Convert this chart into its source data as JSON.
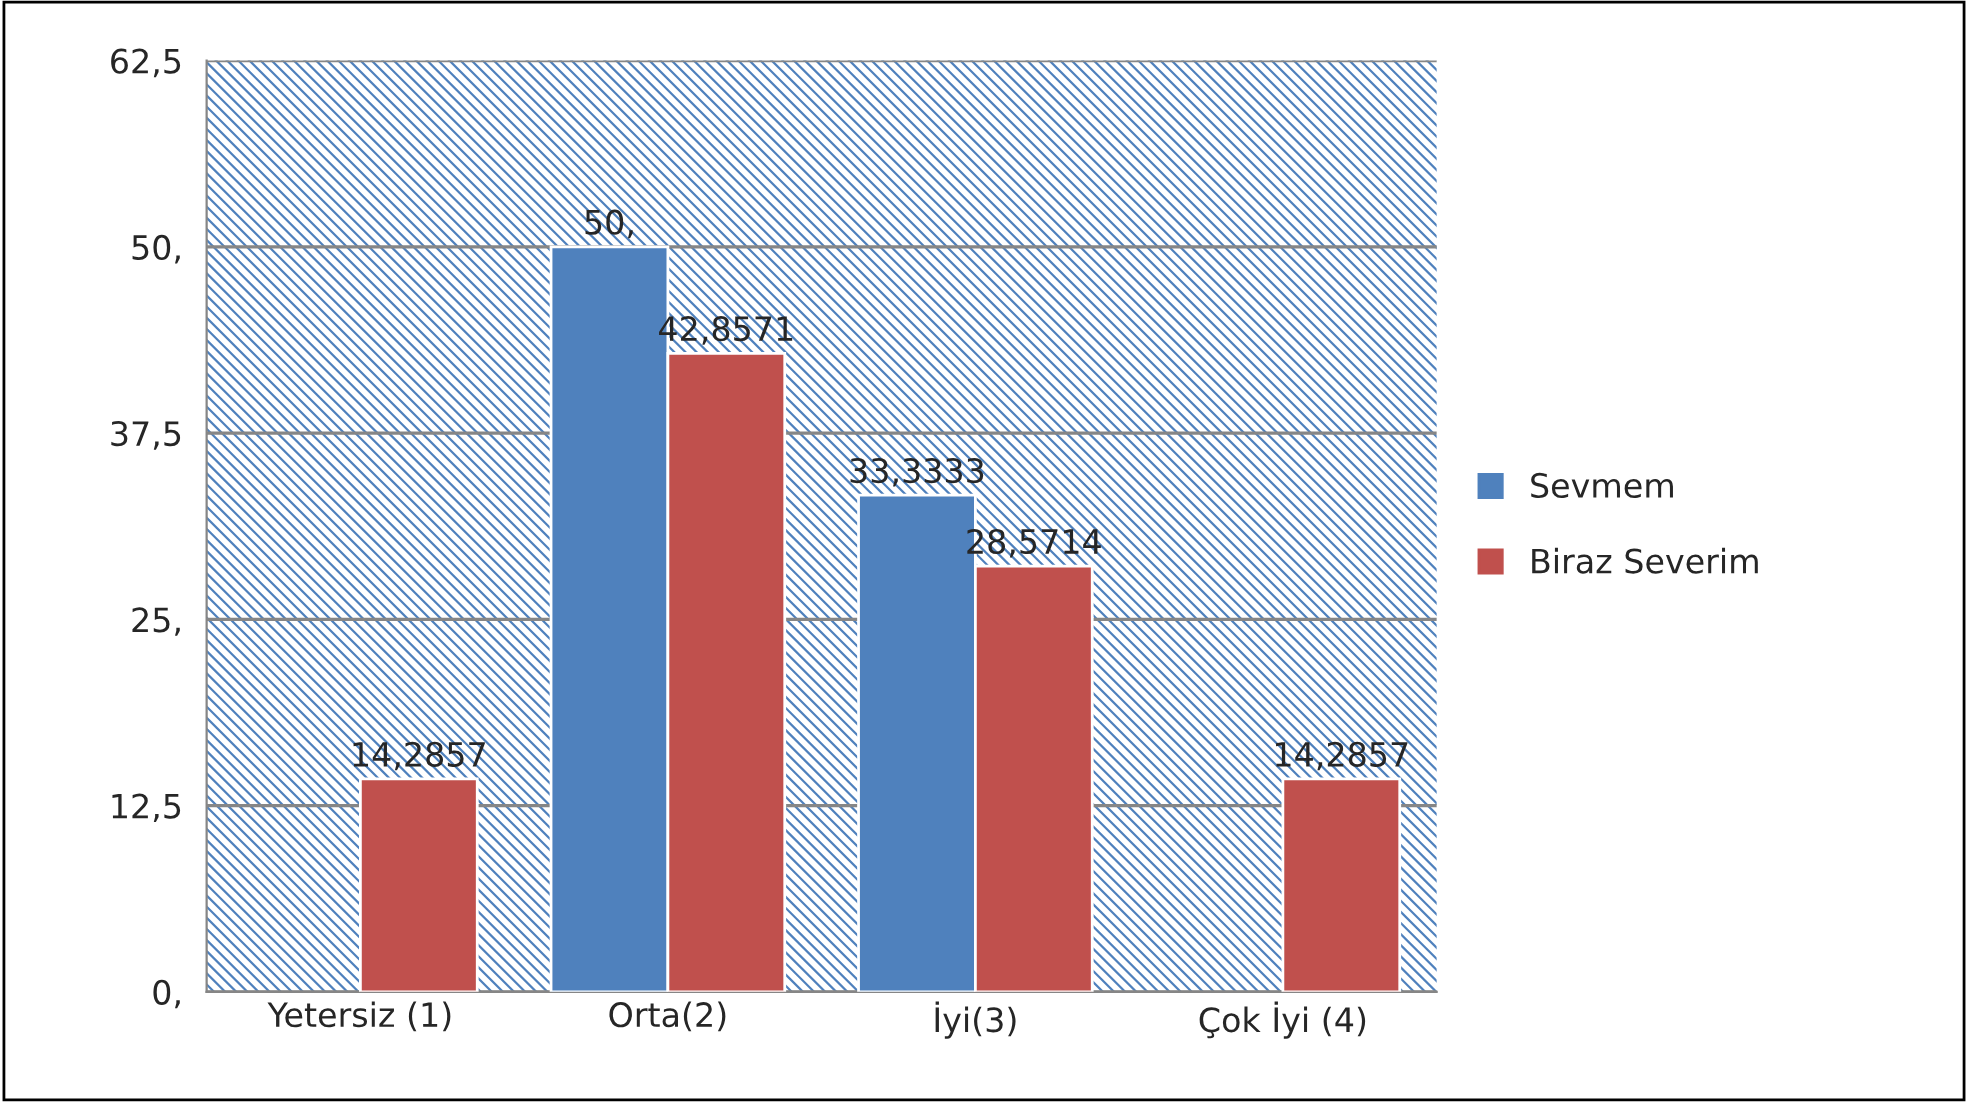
{
  "chart_data": {
    "type": "bar",
    "categories": [
      "Yetersiz (1)",
      "Orta(2)",
      "İyi(3)",
      "Çok İyi (4)"
    ],
    "series": [
      {
        "name": "Sevmem",
        "color": "#4f81bd",
        "values": [
          null,
          50,
          33.3333,
          null
        ],
        "value_labels": [
          null,
          "50,",
          "33,3333",
          null
        ]
      },
      {
        "name": "Biraz Severim",
        "color": "#c0504d",
        "values": [
          14.2857,
          42.8571,
          28.5714,
          14.2857
        ],
        "value_labels": [
          "14,2857",
          "42,8571",
          "28,5714",
          "14,2857"
        ]
      }
    ],
    "ylim": [
      0,
      62.5
    ],
    "yticks": [
      {
        "value": 0,
        "label": "0,"
      },
      {
        "value": 12.5,
        "label": "12,5"
      },
      {
        "value": 25,
        "label": "25,"
      },
      {
        "value": 37.5,
        "label": "37,5"
      },
      {
        "value": 50,
        "label": "50,"
      },
      {
        "value": 62.5,
        "label": "62,5"
      }
    ],
    "grid": "y",
    "legend": "right"
  }
}
